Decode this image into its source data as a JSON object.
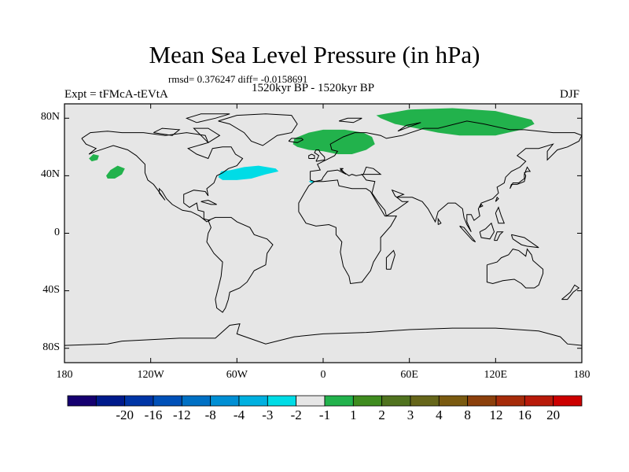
{
  "title": "Mean Sea Level Pressure (in hPa)",
  "stats": "rmsd= 0.376247 diff= -0.0158691",
  "period": "1520kyr BP - 1520kyr BP",
  "experiment": "Expt = tFMcA-tEVtA",
  "season": "DJF",
  "map": {
    "projection": "cylindrical-equidistant",
    "lon_range": [
      -180,
      180
    ],
    "lat_range": [
      -90,
      90
    ],
    "ocean_fill": "#e6e6e6",
    "coastline_color": "#000000",
    "y_ticks": [
      {
        "label": "80N",
        "lat": 80
      },
      {
        "label": "40N",
        "lat": 40
      },
      {
        "label": "0",
        "lat": 0
      },
      {
        "label": "40S",
        "lat": -40
      },
      {
        "label": "80S",
        "lat": -80
      }
    ],
    "x_ticks": [
      {
        "label": "180",
        "lon": -180
      },
      {
        "label": "120W",
        "lon": -120
      },
      {
        "label": "60W",
        "lon": -60
      },
      {
        "label": "0",
        "lon": 0
      },
      {
        "label": "60E",
        "lon": 60
      },
      {
        "label": "120E",
        "lon": 120
      },
      {
        "label": "180",
        "lon": 180
      }
    ]
  },
  "anomaly_regions": [
    {
      "name": "north-pacific-small",
      "bin": "1 to 2",
      "color": "#22b24c",
      "lonlat": [
        [
          -163,
          52
        ],
        [
          -160,
          55
        ],
        [
          -156,
          54
        ],
        [
          -157,
          51
        ],
        [
          -161,
          50
        ]
      ]
    },
    {
      "name": "gulf-of-alaska",
      "bin": "1 to 2",
      "color": "#22b24c",
      "lonlat": [
        [
          -151,
          40
        ],
        [
          -148,
          44
        ],
        [
          -143,
          47
        ],
        [
          -138,
          45
        ],
        [
          -140,
          41
        ],
        [
          -145,
          38
        ],
        [
          -150,
          38
        ]
      ]
    },
    {
      "name": "north-atlantic",
      "bin": "-2 to -1",
      "color": "#00dce6",
      "lonlat": [
        [
          -73,
          39
        ],
        [
          -71,
          43
        ],
        [
          -64,
          44
        ],
        [
          -55,
          46
        ],
        [
          -45,
          47
        ],
        [
          -33,
          45
        ],
        [
          -31,
          43
        ],
        [
          -40,
          41
        ],
        [
          -50,
          38
        ],
        [
          -60,
          37
        ],
        [
          -70,
          37
        ]
      ]
    },
    {
      "name": "atlantic-small",
      "bin": "-2 to -1",
      "color": "#00dce6",
      "lonlat": [
        [
          -10,
          36
        ],
        [
          -8,
          37
        ],
        [
          -6,
          36
        ],
        [
          -8,
          35
        ]
      ]
    },
    {
      "name": "north-europe",
      "bin": "1 to 2",
      "color": "#22b24c",
      "lonlat": [
        [
          -21,
          62
        ],
        [
          -20,
          66
        ],
        [
          -10,
          70
        ],
        [
          0,
          72
        ],
        [
          15,
          72
        ],
        [
          28,
          70
        ],
        [
          34,
          67
        ],
        [
          36,
          62
        ],
        [
          30,
          58
        ],
        [
          20,
          55
        ],
        [
          10,
          55
        ],
        [
          0,
          57
        ],
        [
          -10,
          58
        ],
        [
          -18,
          60
        ]
      ]
    },
    {
      "name": "siberia",
      "bin": "1 to 2",
      "color": "#22b24c",
      "lonlat": [
        [
          37,
          82
        ],
        [
          60,
          86
        ],
        [
          90,
          87
        ],
        [
          120,
          85
        ],
        [
          145,
          79
        ],
        [
          147,
          76
        ],
        [
          138,
          72
        ],
        [
          120,
          68
        ],
        [
          95,
          68
        ],
        [
          80,
          70
        ],
        [
          65,
          73
        ],
        [
          50,
          76
        ],
        [
          40,
          80
        ]
      ]
    }
  ],
  "colorbar": {
    "colors": [
      "#150070",
      "#001a8c",
      "#0035a6",
      "#0050b8",
      "#0070c4",
      "#008fd4",
      "#00b0e0",
      "#00dce6",
      "#e6e6e6",
      "#22b24c",
      "#3f8c1f",
      "#50731f",
      "#66661a",
      "#7a5a10",
      "#8c400c",
      "#a62b0a",
      "#b81a0a",
      "#cc0000"
    ],
    "labels": [
      "-20",
      "-16",
      "-12",
      "-8",
      "-4",
      "-3",
      "-2",
      "-1",
      "1",
      "2",
      "3",
      "4",
      "8",
      "12",
      "16",
      "20"
    ]
  }
}
